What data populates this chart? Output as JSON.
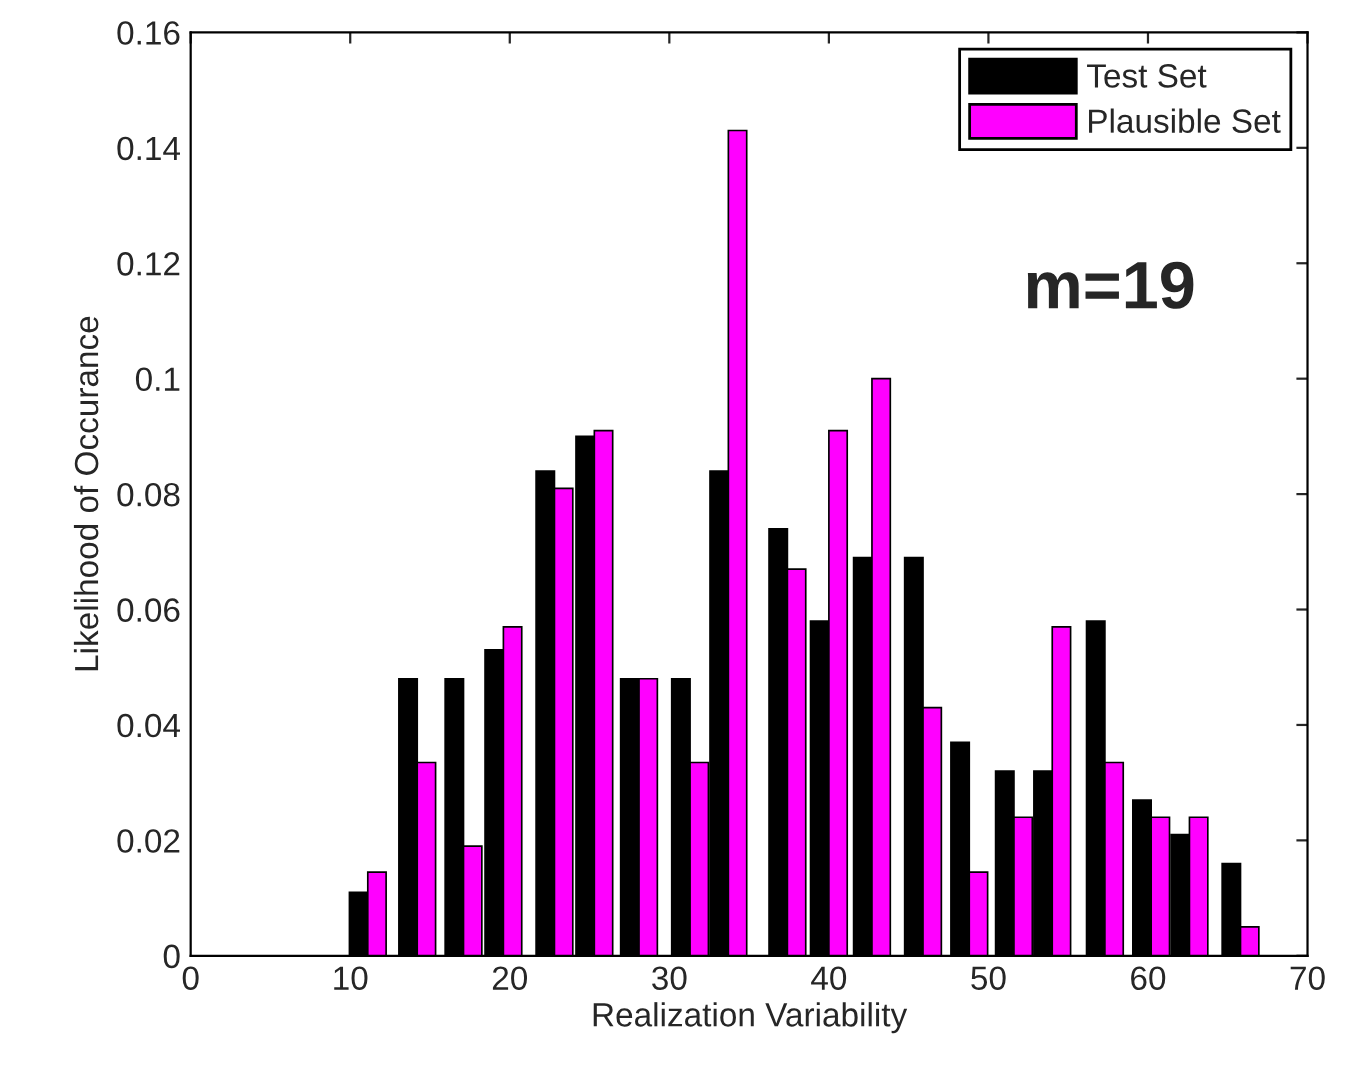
{
  "chart_data": {
    "type": "bar",
    "xlabel": "Realization Variability",
    "ylabel": "Likelihood of Occurance",
    "x": [
      11.1,
      14.2,
      17.1,
      19.6,
      22.8,
      25.3,
      28.1,
      31.3,
      33.7,
      37.4,
      40.0,
      42.7,
      45.9,
      48.8,
      51.6,
      54.0,
      57.3,
      60.2,
      62.6,
      65.8
    ],
    "series": [
      {
        "name": "Test Set",
        "color": "#000000",
        "values": [
          0.011,
          0.048,
          0.048,
          0.053,
          0.084,
          0.09,
          0.048,
          0.048,
          0.084,
          0.074,
          0.058,
          0.069,
          0.069,
          0.037,
          0.032,
          0.032,
          0.058,
          0.027,
          0.021,
          0.016
        ]
      },
      {
        "name": "Plausible Set",
        "color": "#ff00ff",
        "values": [
          0.0145,
          0.0335,
          0.019,
          0.057,
          0.081,
          0.091,
          0.048,
          0.0335,
          0.143,
          0.067,
          0.091,
          0.1,
          0.043,
          0.0145,
          0.024,
          0.057,
          0.0335,
          0.024,
          0.024,
          0.005
        ]
      }
    ],
    "xlim": [
      0,
      70
    ],
    "xticks": [
      0,
      10,
      20,
      30,
      40,
      50,
      60,
      70
    ],
    "ylim": [
      0,
      0.16
    ],
    "yticks": [
      0,
      0.02,
      0.04,
      0.06,
      0.08,
      0.1,
      0.12,
      0.14,
      0.16
    ],
    "annotations": [
      "m=19"
    ],
    "legend": "top right",
    "grid": false
  }
}
